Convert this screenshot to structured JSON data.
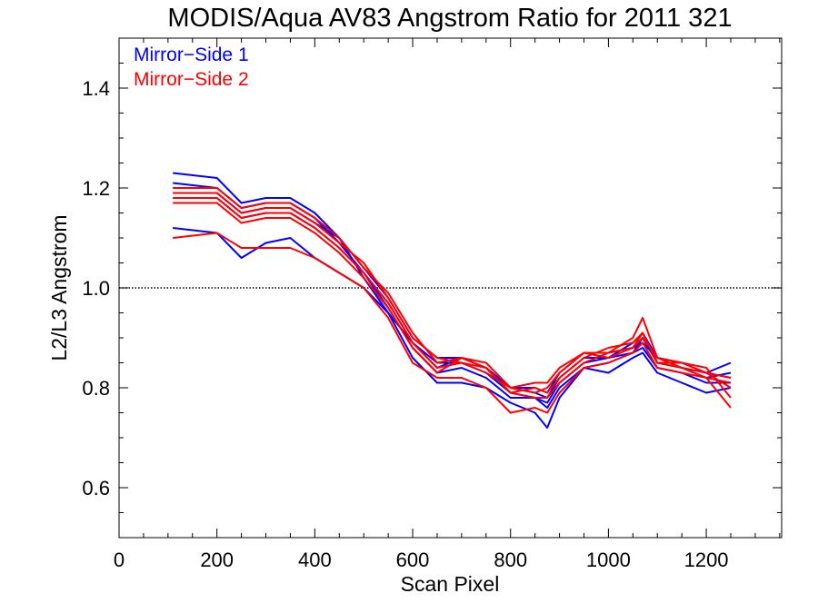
{
  "chart_data": {
    "type": "line",
    "title": "MODIS/Aqua AV83 Angstrom Ratio for 2011 321",
    "xlabel": "Scan Pixel",
    "ylabel": "L2/L3 Angstrom",
    "xlim": [
      0,
      1354
    ],
    "ylim": [
      0.5,
      1.5
    ],
    "x_ticks": [
      "0",
      "200",
      "400",
      "600",
      "800",
      "1000",
      "1200"
    ],
    "y_ticks": [
      "0.6",
      "0.8",
      "1.0",
      "1.2",
      "1.4"
    ],
    "x_tick_values": [
      0,
      200,
      400,
      600,
      800,
      1000,
      1200
    ],
    "y_tick_values": [
      0.6,
      0.8,
      1.0,
      1.2,
      1.4
    ],
    "reference_line": {
      "y": 1.0,
      "style": "dotted"
    },
    "grid": false,
    "legend_position": "top-left",
    "legend": [
      {
        "label": "Mirror−Side 1",
        "color": "#0000ff"
      },
      {
        "label": "Mirror−Side 2",
        "color": "#ff0000"
      }
    ],
    "series": [
      {
        "group": "Mirror−Side 1",
        "color": "#0000ff",
        "x": [
          110,
          200,
          250,
          300,
          350,
          400,
          450,
          500,
          550,
          600,
          650,
          700,
          750,
          800,
          850,
          875,
          900,
          950,
          1000,
          1050,
          1070,
          1100,
          1150,
          1200,
          1250
        ],
        "values": [
          1.23,
          1.22,
          1.17,
          1.18,
          1.18,
          1.15,
          1.1,
          1.02,
          0.95,
          0.89,
          0.84,
          0.86,
          0.84,
          0.8,
          0.79,
          0.78,
          0.82,
          0.86,
          0.86,
          0.89,
          0.91,
          0.86,
          0.84,
          0.83,
          0.85
        ]
      },
      {
        "group": "Mirror−Side 1",
        "color": "#0000ff",
        "x": [
          110,
          200,
          250,
          300,
          350,
          400,
          450,
          500,
          550,
          600,
          650,
          700,
          750,
          800,
          850,
          875,
          900,
          950,
          1000,
          1050,
          1070,
          1100,
          1150,
          1200,
          1250
        ],
        "values": [
          1.21,
          1.2,
          1.16,
          1.17,
          1.17,
          1.14,
          1.09,
          1.03,
          0.97,
          0.89,
          0.85,
          0.85,
          0.83,
          0.79,
          0.78,
          0.77,
          0.81,
          0.85,
          0.86,
          0.87,
          0.9,
          0.85,
          0.84,
          0.82,
          0.83
        ]
      },
      {
        "group": "Mirror−Side 1",
        "color": "#0000ff",
        "x": [
          110,
          200,
          250,
          300,
          350,
          400,
          450,
          500,
          550,
          600,
          650,
          700,
          750,
          800,
          850,
          875,
          900,
          950,
          1000,
          1050,
          1070,
          1100,
          1150,
          1200,
          1250
        ],
        "values": [
          1.19,
          1.19,
          1.15,
          1.16,
          1.16,
          1.13,
          1.1,
          1.04,
          0.98,
          0.9,
          0.86,
          0.86,
          0.84,
          0.8,
          0.8,
          0.79,
          0.83,
          0.87,
          0.87,
          0.88,
          0.89,
          0.86,
          0.85,
          0.83,
          0.82
        ]
      },
      {
        "group": "Mirror−Side 1",
        "color": "#0000ff",
        "x": [
          110,
          200,
          250,
          300,
          350,
          400,
          450,
          500,
          550,
          600,
          650,
          700,
          750,
          800,
          850,
          875,
          900,
          950,
          1000,
          1050,
          1070,
          1100,
          1150,
          1200,
          1250
        ],
        "values": [
          1.18,
          1.18,
          1.14,
          1.15,
          1.15,
          1.12,
          1.08,
          1.03,
          0.96,
          0.88,
          0.83,
          0.84,
          0.82,
          0.78,
          0.78,
          0.76,
          0.8,
          0.84,
          0.85,
          0.87,
          0.88,
          0.84,
          0.83,
          0.81,
          0.81
        ]
      },
      {
        "group": "Mirror−Side 1",
        "color": "#0000ff",
        "x": [
          110,
          200,
          250,
          300,
          350,
          400,
          450,
          500,
          550,
          600,
          650,
          700,
          750,
          800,
          850,
          875,
          900,
          950,
          1000,
          1050,
          1070,
          1100,
          1150,
          1200,
          1250
        ],
        "values": [
          1.12,
          1.11,
          1.06,
          1.09,
          1.1,
          1.06,
          1.03,
          1.0,
          0.95,
          0.86,
          0.81,
          0.81,
          0.8,
          0.77,
          0.75,
          0.72,
          0.78,
          0.84,
          0.83,
          0.86,
          0.87,
          0.83,
          0.81,
          0.79,
          0.8
        ]
      },
      {
        "group": "Mirror−Side 2",
        "color": "#ff0000",
        "x": [
          110,
          200,
          250,
          300,
          350,
          400,
          450,
          500,
          550,
          600,
          650,
          700,
          750,
          800,
          850,
          875,
          900,
          950,
          1000,
          1050,
          1070,
          1100,
          1150,
          1200,
          1250
        ],
        "values": [
          1.2,
          1.2,
          1.16,
          1.17,
          1.17,
          1.14,
          1.1,
          1.04,
          0.99,
          0.91,
          0.85,
          0.86,
          0.85,
          0.8,
          0.79,
          0.8,
          0.83,
          0.87,
          0.87,
          0.9,
          0.94,
          0.86,
          0.85,
          0.83,
          0.82
        ]
      },
      {
        "group": "Mirror−Side 2",
        "color": "#ff0000",
        "x": [
          110,
          200,
          250,
          300,
          350,
          400,
          450,
          500,
          550,
          600,
          650,
          700,
          750,
          800,
          850,
          875,
          900,
          950,
          1000,
          1050,
          1070,
          1100,
          1150,
          1200,
          1250
        ],
        "values": [
          1.19,
          1.19,
          1.15,
          1.16,
          1.16,
          1.13,
          1.09,
          1.05,
          0.98,
          0.9,
          0.86,
          0.85,
          0.84,
          0.79,
          0.8,
          0.79,
          0.82,
          0.86,
          0.88,
          0.89,
          0.91,
          0.85,
          0.84,
          0.82,
          0.81
        ]
      },
      {
        "group": "Mirror−Side 2",
        "color": "#ff0000",
        "x": [
          110,
          200,
          250,
          300,
          350,
          400,
          450,
          500,
          550,
          600,
          650,
          700,
          750,
          800,
          850,
          875,
          900,
          950,
          1000,
          1050,
          1070,
          1100,
          1150,
          1200,
          1250
        ],
        "values": [
          1.18,
          1.18,
          1.14,
          1.15,
          1.15,
          1.12,
          1.08,
          1.03,
          0.97,
          0.89,
          0.84,
          0.85,
          0.83,
          0.8,
          0.81,
          0.81,
          0.84,
          0.87,
          0.86,
          0.88,
          0.9,
          0.86,
          0.84,
          0.83,
          0.8
        ]
      },
      {
        "group": "Mirror−Side 2",
        "color": "#ff0000",
        "x": [
          110,
          200,
          250,
          300,
          350,
          400,
          450,
          500,
          550,
          600,
          650,
          700,
          750,
          800,
          850,
          875,
          900,
          950,
          1000,
          1050,
          1070,
          1100,
          1150,
          1200,
          1250
        ],
        "values": [
          1.17,
          1.17,
          1.13,
          1.14,
          1.14,
          1.11,
          1.07,
          1.02,
          0.96,
          0.88,
          0.83,
          0.86,
          0.84,
          0.79,
          0.78,
          0.78,
          0.81,
          0.85,
          0.87,
          0.88,
          0.91,
          0.85,
          0.85,
          0.84,
          0.78
        ]
      },
      {
        "group": "Mirror−Side 2",
        "color": "#ff0000",
        "x": [
          110,
          200,
          250,
          300,
          350,
          400,
          450,
          500,
          550,
          600,
          650,
          700,
          750,
          800,
          850,
          875,
          900,
          950,
          1000,
          1050,
          1070,
          1100,
          1150,
          1200,
          1250
        ],
        "values": [
          1.1,
          1.11,
          1.08,
          1.08,
          1.08,
          1.06,
          1.03,
          1.0,
          0.94,
          0.85,
          0.82,
          0.82,
          0.8,
          0.75,
          0.76,
          0.75,
          0.79,
          0.84,
          0.85,
          0.87,
          0.89,
          0.84,
          0.83,
          0.82,
          0.76
        ]
      }
    ]
  }
}
